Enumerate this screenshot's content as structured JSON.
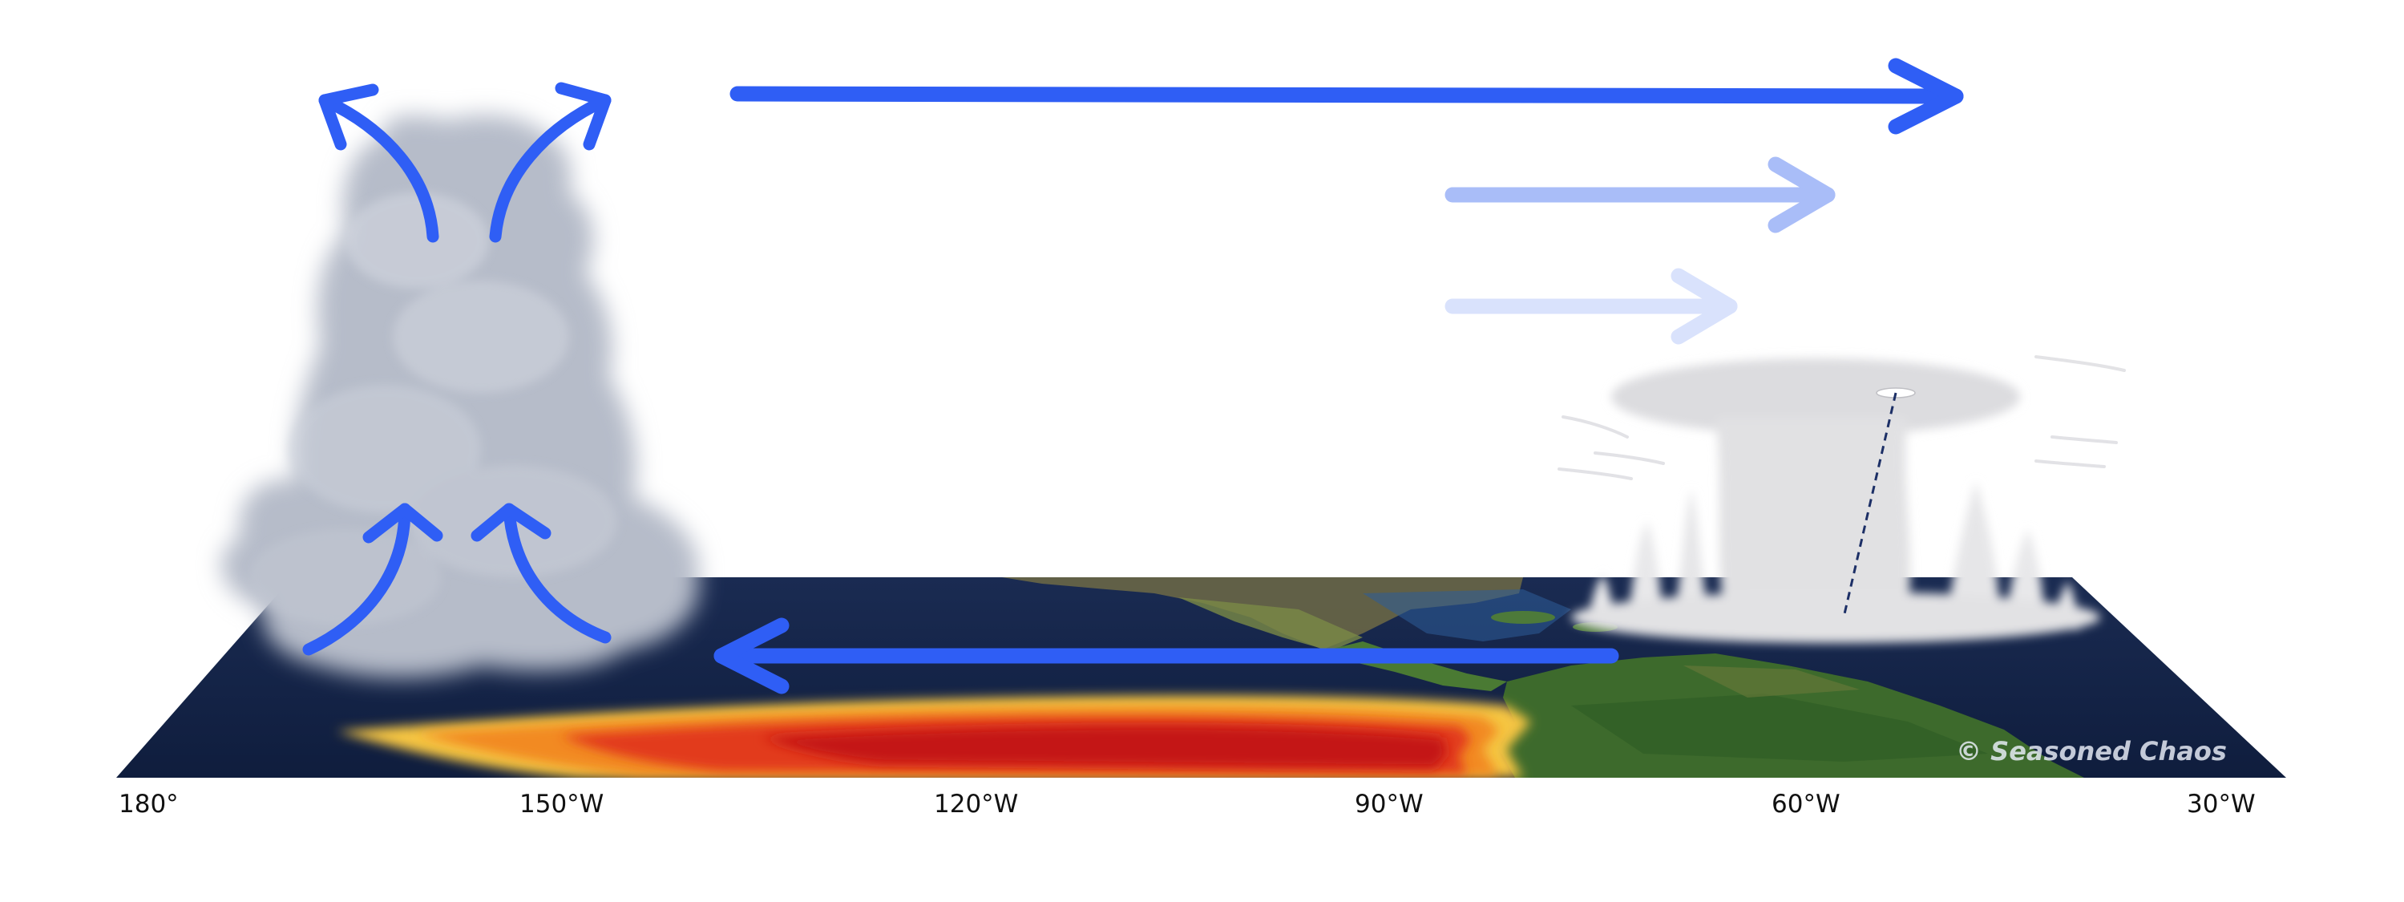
{
  "axis": {
    "ticks": [
      "180°",
      "150°W",
      "120°W",
      "90°W",
      "60°W",
      "30°W"
    ]
  },
  "credit": "© Seasoned Chaos",
  "colors": {
    "arrow_strong": "#2f5ef5",
    "arrow_medium": "#a9bdf8",
    "arrow_faint": "#d9e2fc",
    "ocean": "#14244a",
    "land": "#3d6a2c",
    "warm_core": "#cc1515",
    "warm_edge": "#f5c542",
    "cloud_grey": "#b9bfcb",
    "cloud_light": "#e2e2e4"
  },
  "icons": [
    "rising-air-arrow",
    "diverging-air-arrow",
    "westward-trade-wind-arrow",
    "eastward-upper-flow-arrow",
    "convective-cloud",
    "thunderstorm-cloud"
  ]
}
